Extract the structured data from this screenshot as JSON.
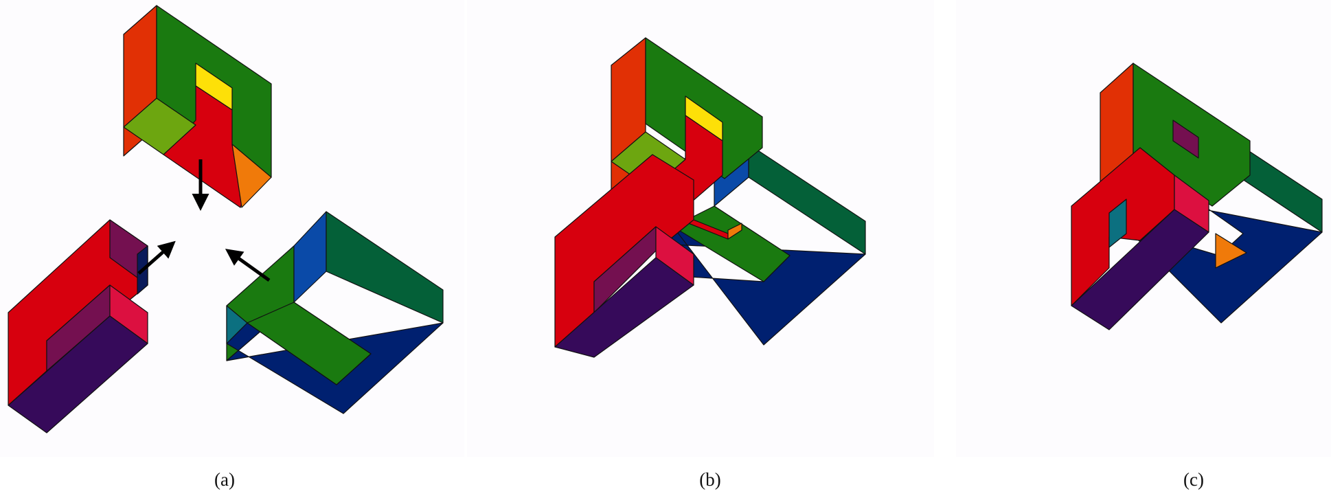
{
  "figure": {
    "panels": [
      {
        "caption": "(a)"
      },
      {
        "caption": "(b)"
      },
      {
        "caption": "(c)"
      }
    ]
  },
  "colors": {
    "red": "#d7000e",
    "red_orange": "#e13005",
    "dark_green": "#1a7a10",
    "teal_green": "#046038",
    "olive_green": "#6da610",
    "yellow": "#fde008",
    "orange": "#f07a0a",
    "navy": "#002070",
    "royal_blue": "#0a4aa8",
    "plum": "#741050",
    "crimson": "#dc1040",
    "dark_purple": "#360a5a",
    "teal": "#0c7080",
    "arrow": "#000000"
  }
}
